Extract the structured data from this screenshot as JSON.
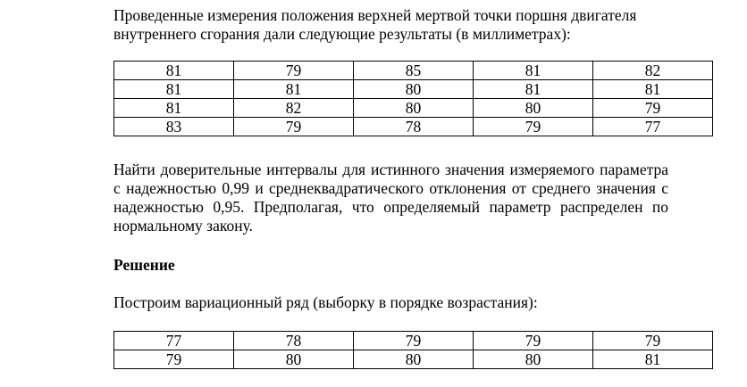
{
  "intro_text": "Проведенные измерения положения верхней мертвой точки поршня двигателя внутреннего сгорания дали следующие результаты (в миллиметрах):",
  "measurements": [
    [
      "81",
      "79",
      "85",
      "81",
      "82"
    ],
    [
      "81",
      "81",
      "80",
      "81",
      "81"
    ],
    [
      "81",
      "82",
      "80",
      "80",
      "79"
    ],
    [
      "83",
      "79",
      "78",
      "79",
      "77"
    ]
  ],
  "task_text": "Найти доверительные интервалы для истинного значения измеряемого параметра с надежностью 0,99 и среднеквадратического отклонения от среднего значения с надежностью 0,95. Предполагая, что определяемый параметр распределен по нормальному закону.",
  "solution_heading": "Решение",
  "step_text": "Построим вариационный ряд (выборку в порядке возрастания):",
  "variation_series": [
    [
      "77",
      "78",
      "79",
      "79",
      "79"
    ],
    [
      "79",
      "80",
      "80",
      "80",
      "81"
    ]
  ]
}
